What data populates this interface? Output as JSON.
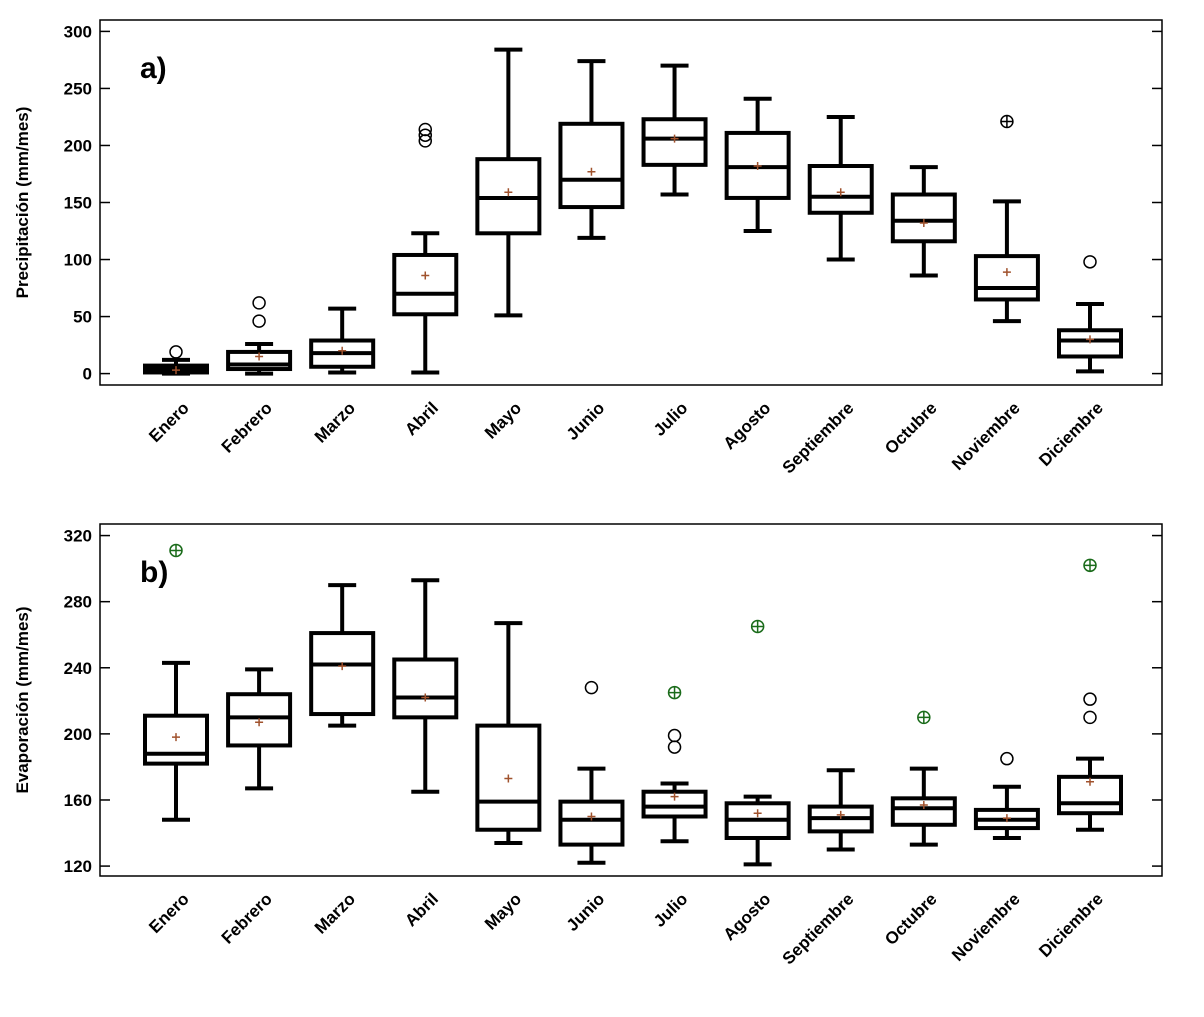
{
  "chart_data": [
    {
      "type": "box",
      "annotation": "a)",
      "y_label": "Precipitación (mm/mes)",
      "ylim": [
        -10,
        310
      ],
      "yticks": [
        0,
        50,
        100,
        150,
        200,
        250,
        300
      ],
      "color": "#000000",
      "mean_color": "#a0522d",
      "far_outlier_color": "#000000",
      "categories": [
        "Enero",
        "Febrero",
        "Marzo",
        "Abril",
        "Mayo",
        "Junio",
        "Julio",
        "Agosto",
        "Septiembre",
        "Octubre",
        "Noviembre",
        "Diciembre"
      ],
      "boxes": [
        {
          "min": 0,
          "q1": 1,
          "median": 4,
          "q3": 7,
          "max": 12,
          "mean": 3,
          "outliers": [
            19
          ]
        },
        {
          "min": 0,
          "q1": 4,
          "median": 8,
          "q3": 19,
          "max": 26,
          "mean": 15,
          "outliers": [
            62,
            46
          ]
        },
        {
          "min": 1,
          "q1": 6,
          "median": 18,
          "q3": 29,
          "max": 57,
          "mean": 20
        },
        {
          "min": 1,
          "q1": 52,
          "median": 70,
          "q3": 104,
          "max": 123,
          "mean": 86,
          "outliers": [
            214,
            209,
            204
          ]
        },
        {
          "min": 51,
          "q1": 123,
          "median": 154,
          "q3": 188,
          "max": 284,
          "mean": 159
        },
        {
          "min": 119,
          "q1": 146,
          "median": 170,
          "q3": 219,
          "max": 274,
          "mean": 177
        },
        {
          "min": 157,
          "q1": 183,
          "median": 206,
          "q3": 223,
          "max": 270,
          "mean": 206
        },
        {
          "min": 125,
          "q1": 154,
          "median": 181,
          "q3": 211,
          "max": 241,
          "mean": 182
        },
        {
          "min": 100,
          "q1": 141,
          "median": 155,
          "q3": 182,
          "max": 225,
          "mean": 159
        },
        {
          "min": 86,
          "q1": 116,
          "median": 134,
          "q3": 157,
          "max": 181,
          "mean": 132
        },
        {
          "min": 46,
          "q1": 65,
          "median": 75,
          "q3": 103,
          "max": 151,
          "mean": 89,
          "far_outliers": [
            221
          ]
        },
        {
          "min": 2,
          "q1": 15,
          "median": 29,
          "q3": 38,
          "max": 61,
          "mean": 30,
          "outliers": [
            98
          ]
        }
      ]
    },
    {
      "type": "box",
      "annotation": "b)",
      "y_label": "Evaporación (mm/mes)",
      "ylim": [
        114,
        327
      ],
      "yticks": [
        120,
        160,
        200,
        240,
        280,
        320
      ],
      "color": "#000000",
      "mean_color": "#a0522d",
      "far_outlier_color": "#1a6b1a",
      "categories": [
        "Enero",
        "Febrero",
        "Marzo",
        "Abril",
        "Mayo",
        "Junio",
        "Julio",
        "Agosto",
        "Septiembre",
        "Octubre",
        "Noviembre",
        "Diciembre"
      ],
      "boxes": [
        {
          "min": 148,
          "q1": 182,
          "median": 188,
          "q3": 211,
          "max": 243,
          "mean": 198,
          "far_outliers": [
            311
          ]
        },
        {
          "min": 167,
          "q1": 193,
          "median": 210,
          "q3": 224,
          "max": 239,
          "mean": 207
        },
        {
          "min": 205,
          "q1": 212,
          "median": 242,
          "q3": 261,
          "max": 290,
          "mean": 241
        },
        {
          "min": 165,
          "q1": 210,
          "median": 222,
          "q3": 245,
          "max": 293,
          "mean": 222
        },
        {
          "min": 134,
          "q1": 142,
          "median": 159,
          "q3": 205,
          "max": 267,
          "mean": 173
        },
        {
          "min": 122,
          "q1": 133,
          "median": 148,
          "q3": 159,
          "max": 179,
          "mean": 150,
          "outliers": [
            228
          ]
        },
        {
          "min": 135,
          "q1": 150,
          "median": 156,
          "q3": 165,
          "max": 170,
          "mean": 162,
          "outliers": [
            199,
            192
          ],
          "far_outliers": [
            225
          ]
        },
        {
          "min": 121,
          "q1": 137,
          "median": 148,
          "q3": 158,
          "max": 162,
          "mean": 152,
          "far_outliers": [
            265
          ]
        },
        {
          "min": 130,
          "q1": 141,
          "median": 149,
          "q3": 156,
          "max": 178,
          "mean": 151
        },
        {
          "min": 133,
          "q1": 145,
          "median": 155,
          "q3": 161,
          "max": 179,
          "mean": 157,
          "far_outliers": [
            210
          ]
        },
        {
          "min": 137,
          "q1": 143,
          "median": 148,
          "q3": 154,
          "max": 168,
          "mean": 149,
          "outliers": [
            185
          ]
        },
        {
          "min": 142,
          "q1": 152,
          "median": 158,
          "q3": 174,
          "max": 185,
          "mean": 171,
          "outliers": [
            221,
            210
          ],
          "far_outliers": [
            302
          ]
        }
      ]
    }
  ]
}
